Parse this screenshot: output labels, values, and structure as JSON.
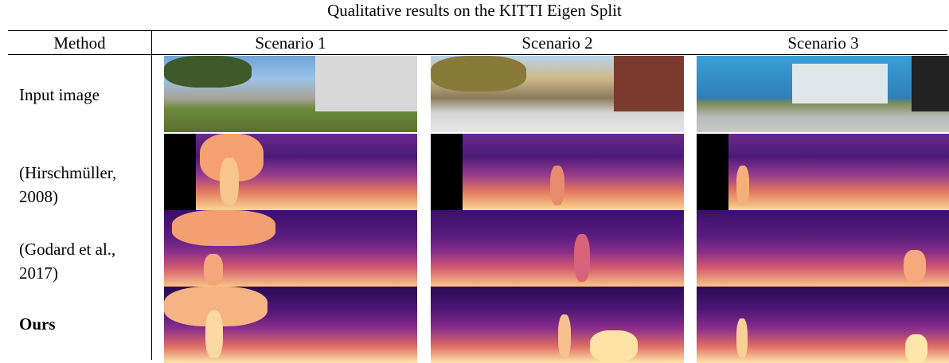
{
  "caption": "Qualitative results on the KITTI Eigen Split",
  "header": {
    "method": "Method",
    "scenarios": [
      "Scenario 1",
      "Scenario 2",
      "Scenario 3"
    ]
  },
  "rows": [
    {
      "label_line1": "Input image",
      "label_line2": ""
    },
    {
      "label_line1": "(Hirschmüller,",
      "label_line2": "2008)"
    },
    {
      "label_line1": "(Godard et al.,",
      "label_line2": "2017)"
    },
    {
      "label_line1": "Ours",
      "label_line2": ""
    }
  ]
}
